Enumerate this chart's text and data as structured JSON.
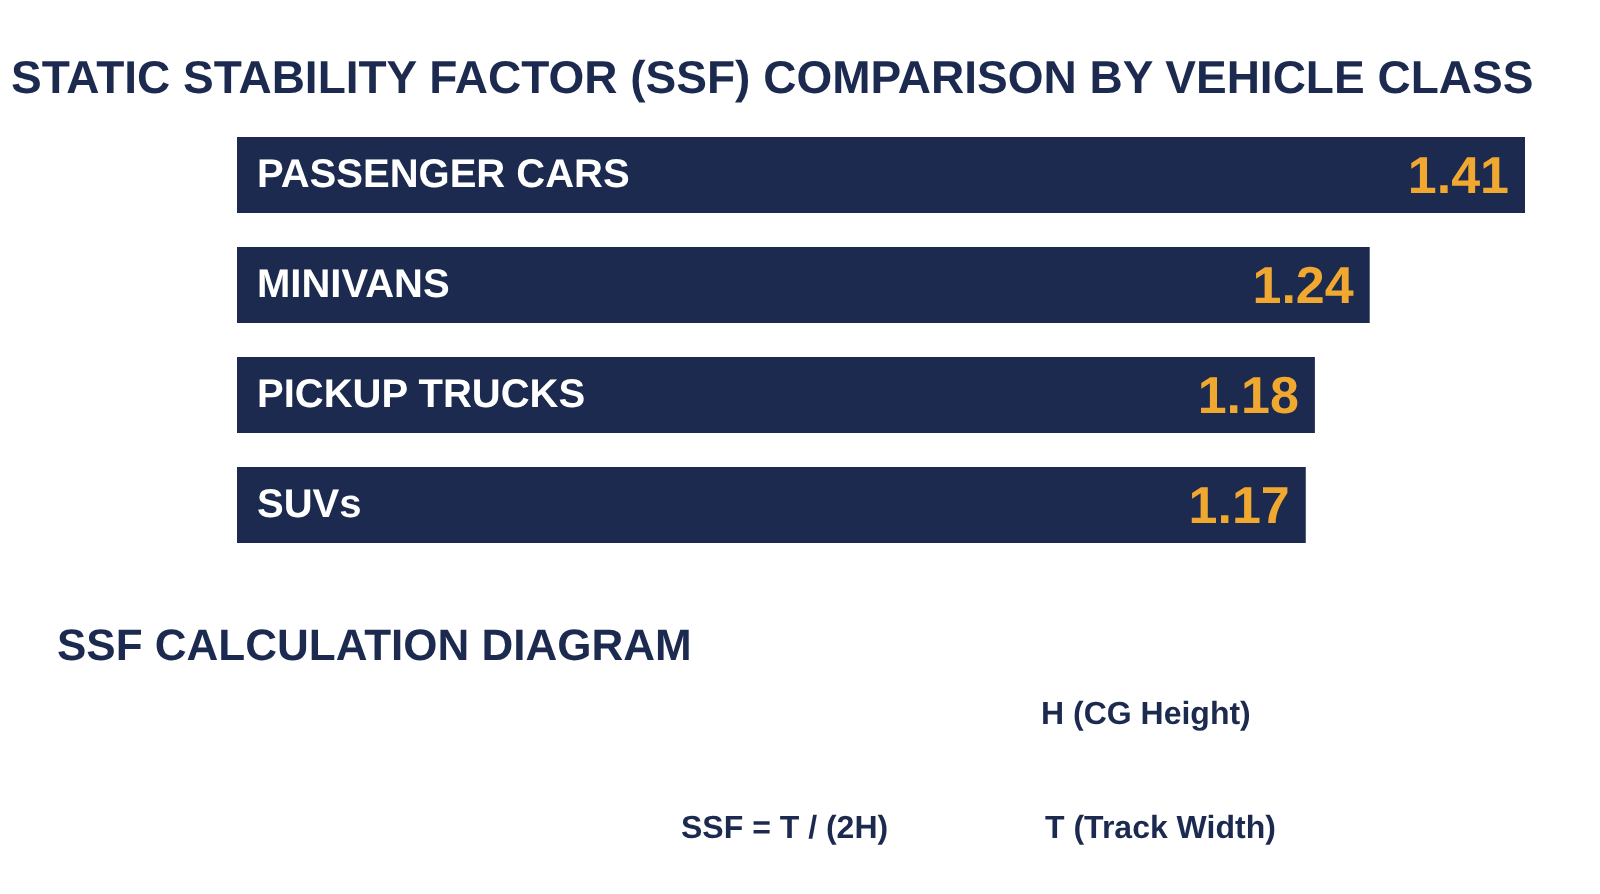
{
  "chart_data": {
    "type": "bar",
    "orientation": "horizontal",
    "title": "STATIC STABILITY FACTOR (SSF) COMPARISON BY VEHICLE CLASS",
    "categories": [
      "PASSENGER CARS",
      "MINIVANS",
      "PICKUP TRUCKS",
      "SUVs"
    ],
    "values": [
      1.41,
      1.24,
      1.18,
      1.17
    ],
    "color": "#1b2a4e",
    "data_labels": true,
    "annotations": [
      "SSF CALCULATION DIAGRAM",
      "H (CG Height)",
      "T (Track Width)",
      "SSF = T / (2H)"
    ]
  }
}
